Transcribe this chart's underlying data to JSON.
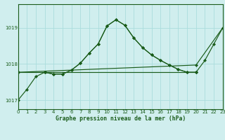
{
  "bg_color": "#d0eeee",
  "grid_color": "#aadddd",
  "line_color": "#1a5c1a",
  "title": "Graphe pression niveau de la mer (hPa)",
  "xlim": [
    0,
    23
  ],
  "ylim": [
    1016.75,
    1019.65
  ],
  "yticks": [
    1017,
    1018,
    1019
  ],
  "xticks": [
    0,
    1,
    2,
    3,
    4,
    5,
    6,
    7,
    8,
    9,
    10,
    11,
    12,
    13,
    14,
    15,
    16,
    17,
    18,
    19,
    20,
    21,
    22,
    23
  ],
  "series": [
    {
      "x": [
        0,
        1,
        2,
        3,
        4,
        5,
        6,
        7,
        8,
        9,
        10,
        11,
        12,
        13,
        14,
        15,
        16,
        17,
        18,
        19,
        20,
        21,
        22,
        23
      ],
      "y": [
        1017.0,
        1017.3,
        1017.65,
        1017.77,
        1017.72,
        1017.72,
        1017.83,
        1018.02,
        1018.3,
        1018.55,
        1019.05,
        1019.22,
        1019.07,
        1018.72,
        1018.45,
        1018.25,
        1018.1,
        1017.97,
        1017.85,
        1017.77,
        1017.77,
        1018.1,
        1018.55,
        1019.0
      ]
    },
    {
      "x": [
        3,
        4,
        5,
        6,
        7,
        8,
        9,
        10,
        11,
        12,
        13,
        14,
        15,
        16,
        17,
        18,
        19,
        20
      ],
      "y": [
        1017.77,
        1017.72,
        1017.72,
        1017.83,
        1018.02,
        1018.3,
        1018.55,
        1019.05,
        1019.22,
        1019.07,
        1018.72,
        1018.45,
        1018.25,
        1018.1,
        1017.97,
        1017.85,
        1017.77,
        1017.77
      ]
    },
    {
      "x": [
        0,
        3,
        20
      ],
      "y": [
        1017.77,
        1017.77,
        1017.77
      ]
    },
    {
      "x": [
        0,
        20,
        23
      ],
      "y": [
        1017.77,
        1017.97,
        1019.0
      ]
    }
  ]
}
